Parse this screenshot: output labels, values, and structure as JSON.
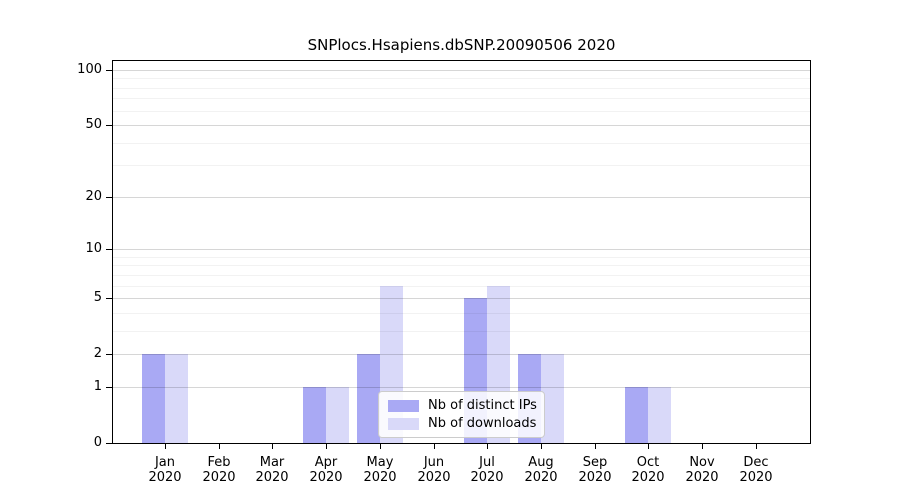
{
  "chart_data": {
    "type": "bar",
    "title": "SNPlocs.Hsapiens.dbSNP.20090506 2020",
    "categories": [
      "Jan 2020",
      "Feb 2020",
      "Mar 2020",
      "Apr 2020",
      "May 2020",
      "Jun 2020",
      "Jul 2020",
      "Aug 2020",
      "Sep 2020",
      "Oct 2020",
      "Nov 2020",
      "Dec 2020"
    ],
    "series": [
      {
        "name": "Nb of distinct IPs",
        "color": "#a9a9f4",
        "values": [
          2,
          0,
          0,
          1,
          2,
          0,
          5,
          2,
          0,
          1,
          0,
          0
        ]
      },
      {
        "name": "Nb of downloads",
        "color": "#d9d9f9",
        "values": [
          2,
          0,
          0,
          1,
          6,
          0,
          6,
          2,
          0,
          1,
          0,
          0
        ]
      }
    ],
    "xlabel": "",
    "ylabel": "",
    "y_axis": {
      "scale": "log1p",
      "tick_values": [
        0,
        1,
        2,
        5,
        10,
        20,
        50,
        100
      ],
      "major_gridline_values": [
        1,
        2,
        5,
        10,
        20,
        50,
        100
      ],
      "minor_gridline_values": [
        3,
        4,
        6,
        7,
        8,
        9,
        30,
        40,
        60,
        70,
        80,
        90
      ],
      "ylim": [
        0,
        116
      ]
    },
    "grid": true,
    "legend_position": "lower center"
  }
}
